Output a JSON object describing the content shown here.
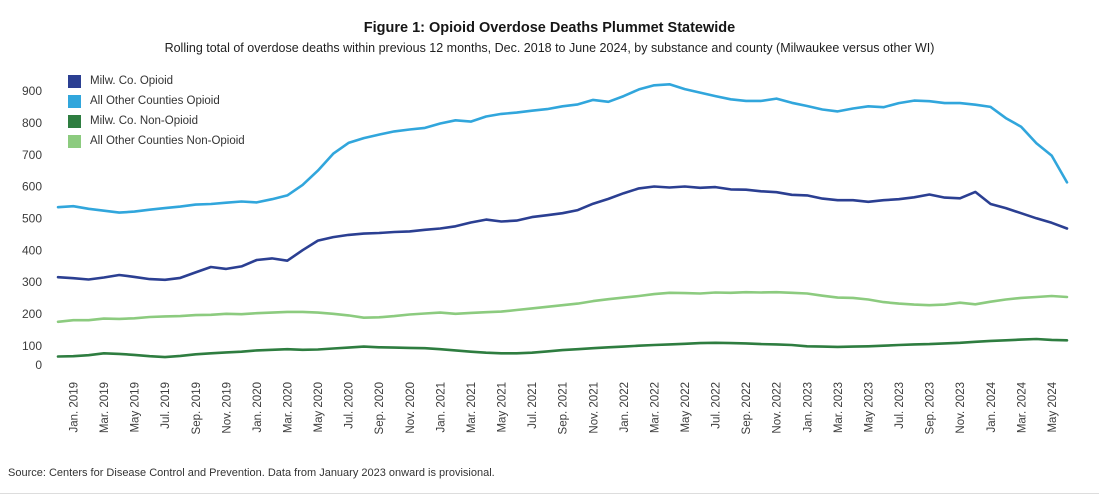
{
  "header": {
    "title": "Figure 1: Opioid Overdose Deaths Plummet Statewide",
    "subtitle": "Rolling total of overdose deaths within previous 12 months, Dec. 2018 to June 2024, by substance and county (Milwaukee versus other WI)"
  },
  "legend": {
    "items": [
      {
        "label": "Milw. Co. Opioid"
      },
      {
        "label": "All Other Counties Opioid"
      },
      {
        "label": "Milw. Co. Non-Opioid"
      },
      {
        "label": "All Other Counties Non-Opioid"
      }
    ]
  },
  "chart_data": {
    "type": "line",
    "title": "Figure 1: Opioid Overdose Deaths Plummet Statewide",
    "xlabel": "",
    "ylabel": "",
    "ylim": [
      0,
      900
    ],
    "y_ticks": [
      0,
      100,
      200,
      300,
      400,
      500,
      600,
      700,
      800,
      900
    ],
    "grid": false,
    "legend_position": "top-left",
    "x_tick_start_index": 1,
    "x_tick_every": 2,
    "x": [
      "Dec. 2018",
      "Jan. 2019",
      "Feb. 2019",
      "Mar. 2019",
      "Apr. 2019",
      "May 2019",
      "Jun. 2019",
      "Jul. 2019",
      "Aug. 2019",
      "Sep. 2019",
      "Oct. 2019",
      "Nov. 2019",
      "Dec. 2019",
      "Jan. 2020",
      "Feb. 2020",
      "Mar. 2020",
      "Apr. 2020",
      "May 2020",
      "Jun. 2020",
      "Jul. 2020",
      "Aug. 2020",
      "Sep. 2020",
      "Oct. 2020",
      "Nov. 2020",
      "Dec. 2020",
      "Jan. 2021",
      "Feb. 2021",
      "Mar. 2021",
      "Apr. 2021",
      "May 2021",
      "Jun. 2021",
      "Jul. 2021",
      "Aug. 2021",
      "Sep. 2021",
      "Oct. 2021",
      "Nov. 2021",
      "Dec. 2021",
      "Jan. 2022",
      "Feb. 2022",
      "Mar. 2022",
      "Apr. 2022",
      "May 2022",
      "Jun. 2022",
      "Jul. 2022",
      "Aug. 2022",
      "Sep. 2022",
      "Oct. 2022",
      "Nov. 2022",
      "Dec. 2022",
      "Jan. 2023",
      "Feb. 2023",
      "Mar. 2023",
      "Apr. 2023",
      "May 2023",
      "Jun. 2023",
      "Jul. 2023",
      "Aug. 2023",
      "Sep. 2023",
      "Oct. 2023",
      "Nov. 2023",
      "Dec. 2023",
      "Jan. 2024",
      "Feb. 2024",
      "Mar. 2024",
      "Apr. 2024",
      "May 2024",
      "Jun. 2024"
    ],
    "series": [
      {
        "name": "Milw. Co. Opioid",
        "color": "#2b3f92",
        "values": [
          315,
          312,
          308,
          314,
          322,
          316,
          309,
          307,
          313,
          330,
          347,
          341,
          349,
          369,
          374,
          367,
          400,
          430,
          441,
          448,
          452,
          454,
          457,
          459,
          464,
          468,
          475,
          487,
          496,
          490,
          493,
          504,
          510,
          516,
          526,
          546,
          561,
          579,
          594,
          600,
          597,
          600,
          596,
          598,
          591,
          590,
          585,
          582,
          574,
          572,
          562,
          557,
          557,
          552,
          557,
          560,
          566,
          575,
          565,
          563,
          583,
          545,
          532,
          516,
          500,
          486,
          468
        ]
      },
      {
        "name": "All Other Counties Opioid",
        "color": "#31a6dc",
        "values": [
          535,
          538,
          530,
          524,
          518,
          521,
          527,
          532,
          537,
          543,
          545,
          549,
          553,
          550,
          560,
          572,
          605,
          650,
          703,
          737,
          752,
          763,
          773,
          779,
          784,
          798,
          808,
          804,
          820,
          828,
          832,
          838,
          843,
          852,
          858,
          872,
          866,
          884,
          905,
          918,
          921,
          906,
          895,
          884,
          874,
          869,
          869,
          876,
          863,
          853,
          842,
          836,
          845,
          852,
          849,
          862,
          870,
          868,
          862,
          862,
          857,
          850,
          815,
          788,
          736,
          697,
          613
        ]
      },
      {
        "name": "Milw. Co. Non-Opioid",
        "color": "#2e7d40",
        "values": [
          66,
          67,
          70,
          76,
          74,
          71,
          67,
          64,
          68,
          73,
          76,
          79,
          81,
          85,
          87,
          89,
          87,
          88,
          91,
          94,
          97,
          95,
          94,
          93,
          92,
          89,
          85,
          81,
          78,
          76,
          76,
          78,
          82,
          86,
          89,
          92,
          95,
          97,
          100,
          102,
          104,
          106,
          108,
          109,
          108,
          107,
          105,
          104,
          102,
          98,
          97,
          96,
          97,
          98,
          100,
          102,
          104,
          105,
          107,
          109,
          112,
          115,
          117,
          119,
          121,
          118,
          117
        ]
      },
      {
        "name": "All Other Counties Non-Opioid",
        "color": "#8ccb7f",
        "values": [
          175,
          180,
          180,
          185,
          184,
          186,
          190,
          192,
          193,
          196,
          197,
          200,
          199,
          202,
          204,
          206,
          206,
          204,
          200,
          195,
          188,
          189,
          193,
          198,
          201,
          204,
          200,
          203,
          205,
          207,
          212,
          217,
          222,
          227,
          232,
          240,
          246,
          251,
          256,
          262,
          266,
          265,
          264,
          267,
          266,
          268,
          267,
          268,
          266,
          264,
          257,
          251,
          250,
          245,
          237,
          232,
          229,
          227,
          229,
          235,
          230,
          238,
          245,
          250,
          253,
          256,
          253
        ]
      }
    ]
  },
  "source": {
    "text": "Source: Centers for Disease Control and Prevention. Data from January 2023 onward is provisional."
  }
}
